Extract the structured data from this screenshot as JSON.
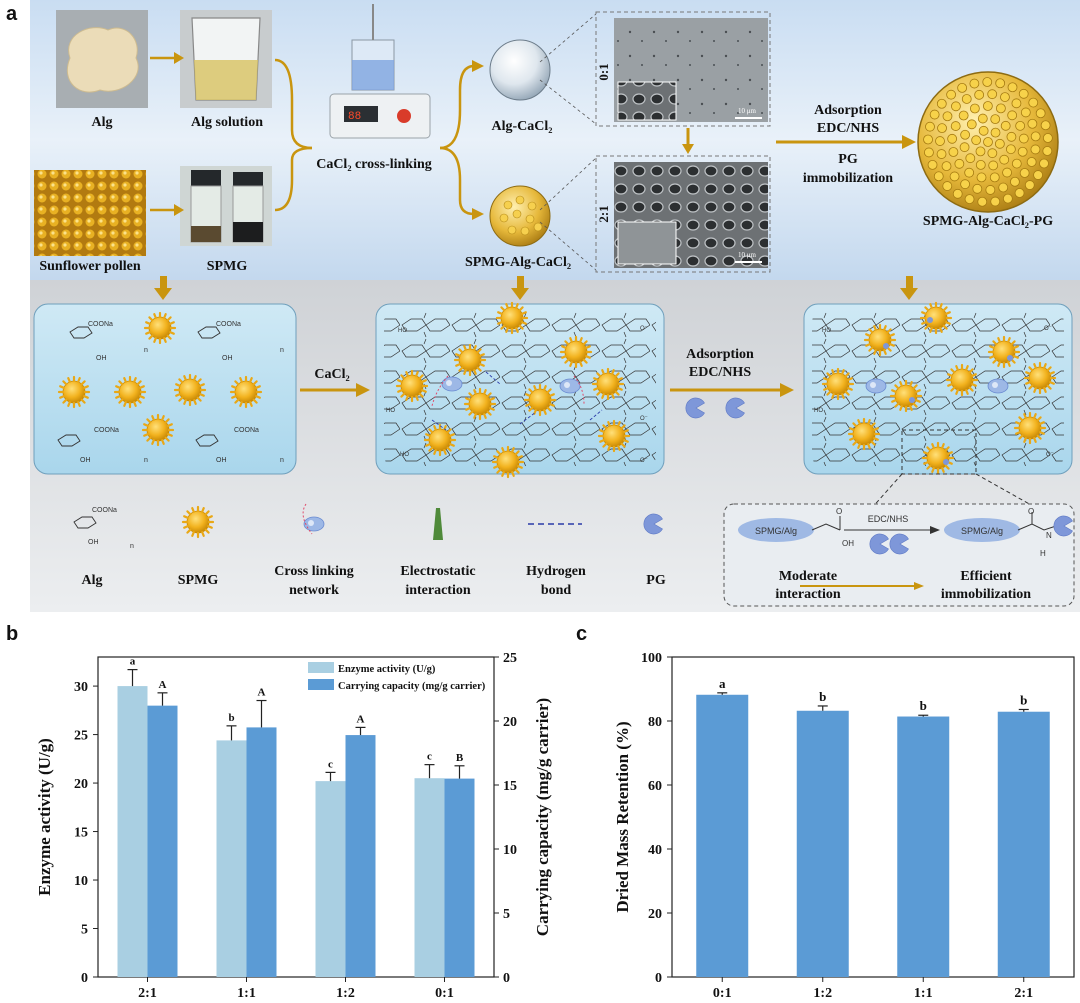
{
  "figure": {
    "panel_a": {
      "letter": "a",
      "top": {
        "alg": "Alg",
        "alg_solution": "Alg solution",
        "sunflower_pollen": "Sunflower pollen",
        "spmg": "SPMG",
        "cacl2_crosslinking": "CaCl₂ cross-linking",
        "alg_cacl2": "Alg-CaCl₂",
        "spmg_alg_cacl2": "SPMG-Alg-CaCl₂",
        "ratio_top": "0:1",
        "ratio_bottom": "2:1",
        "scale_bar": "10 μm",
        "adsorption": "Adsorption",
        "edc_nhs": "EDC/NHS",
        "pg": "PG",
        "immobilization": "immobilization",
        "product": "SPMG-Alg-CaCl₂-PG"
      },
      "middle": {
        "cacl2": "CaCl₂",
        "adsorption": "Adsorption",
        "edc_nhs": "EDC/NHS",
        "coona": "COONa",
        "oh": "OH",
        "ho": "HO",
        "n": "n",
        "o": "O",
        "coo_minus": "O⁻"
      },
      "legend": {
        "alg": "Alg",
        "spmg": "SPMG",
        "crosslink_1": "Cross linking",
        "crosslink_2": "network",
        "electro_1": "Electrostatic",
        "electro_2": "interaction",
        "hbond_1": "Hydrogen",
        "hbond_2": "bond",
        "pg": "PG"
      },
      "inset": {
        "spmg_alg_left": "SPMG/Alg",
        "spmg_alg_right": "SPMG/Alg",
        "edc_nhs": "EDC/NHS",
        "oh": "OH",
        "o": "O",
        "n": "N",
        "h": "H",
        "moderate_1": "Moderate",
        "moderate_2": "interaction",
        "efficient_1": "Efficient",
        "efficient_2": "immobilization"
      }
    },
    "panel_b": {
      "letter": "b"
    },
    "panel_c": {
      "letter": "c"
    }
  },
  "chart_data": [
    {
      "type": "bar",
      "id": "b",
      "categories": [
        "2:1",
        "1:1",
        "1:2",
        "0:1"
      ],
      "series": [
        {
          "name": "Enzyme activity (U/g)",
          "axis": "left",
          "color": "#a9cfe2",
          "values": [
            30.0,
            24.4,
            20.2,
            20.5
          ],
          "errors": [
            1.7,
            1.5,
            0.9,
            1.4
          ],
          "letters": [
            "a",
            "b",
            "c",
            "c"
          ]
        },
        {
          "name": "Carrying capacity (mg/g carrier)",
          "axis": "right",
          "color": "#5b9bd5",
          "values": [
            21.2,
            19.5,
            18.9,
            15.5
          ],
          "errors": [
            1.0,
            2.1,
            0.6,
            1.0
          ],
          "letters": [
            "A",
            "A",
            "A",
            "B"
          ]
        }
      ],
      "ylabel": "Enzyme activity (U/g)",
      "ylim": [
        0,
        33
      ],
      "yticks": [
        "0",
        "5",
        "10",
        "15",
        "20",
        "25",
        "30"
      ],
      "y2label": "Carrying capacity (mg/g carrier)",
      "y2lim": [
        0,
        25
      ],
      "y2ticks": [
        "0",
        "5",
        "10",
        "15",
        "20",
        "25"
      ]
    },
    {
      "type": "bar",
      "id": "c",
      "categories": [
        "0:1",
        "1:2",
        "1:1",
        "2:1"
      ],
      "series": [
        {
          "name": "Dried Mass Retention (%)",
          "color": "#5b9bd5",
          "values": [
            88.2,
            83.2,
            81.4,
            82.9
          ],
          "errors": [
            0.6,
            1.5,
            0.4,
            0.7
          ],
          "letters": [
            "a",
            "b",
            "b",
            "b"
          ]
        }
      ],
      "ylabel": "Dried Mass Retention (%)",
      "ylim": [
        0,
        100
      ],
      "yticks": [
        "0",
        "20",
        "40",
        "60",
        "80",
        "100"
      ]
    }
  ]
}
